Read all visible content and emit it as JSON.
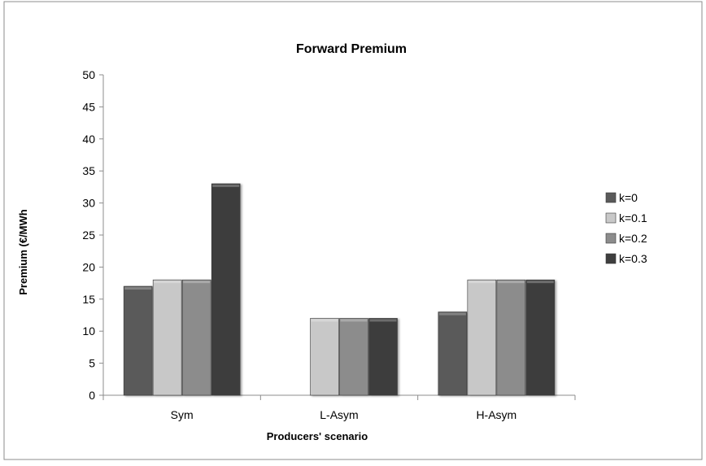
{
  "chart_data": {
    "type": "bar",
    "title": "Forward Premium",
    "xlabel": "Producers' scenario",
    "ylabel": "Premium (€/MWh",
    "categories": [
      "Sym",
      "L-Asym",
      "H-Asym"
    ],
    "series": [
      {
        "name": "k=0",
        "values": [
          17,
          null,
          13
        ],
        "color": "#5a5a5a"
      },
      {
        "name": "k=0.1",
        "values": [
          18,
          12,
          18
        ],
        "color": "#c8c8c8"
      },
      {
        "name": "k=0.2",
        "values": [
          18,
          12,
          18
        ],
        "color": "#8c8c8c"
      },
      {
        "name": "k=0.3",
        "values": [
          33,
          12,
          18
        ],
        "color": "#3e3e3e"
      }
    ],
    "ylim": [
      0,
      50
    ],
    "yticks": [
      "0",
      "5",
      "10",
      "15",
      "20",
      "25",
      "30",
      "35",
      "40",
      "45",
      "50"
    ],
    "grid": false,
    "legend_position": "right"
  }
}
